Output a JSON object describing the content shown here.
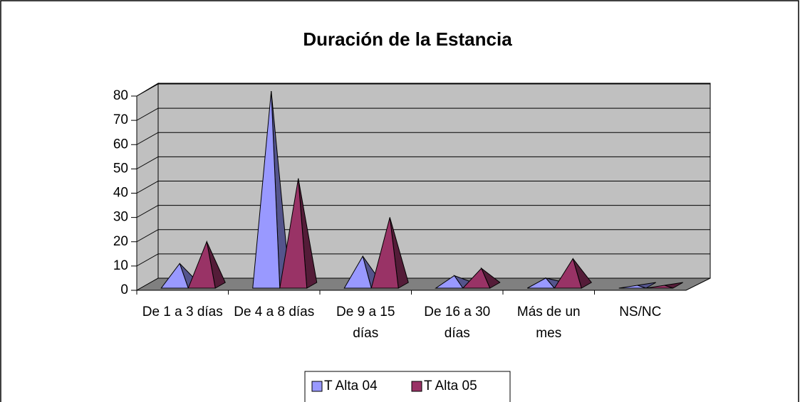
{
  "chart_data": {
    "type": "pyramid3d",
    "title": "Duración de la Estancia",
    "categories": [
      "De 1 a 3 días",
      "De 4 a 8 días",
      "De 9 a 15 días",
      "De 16 a 30 días",
      "Más de un mes",
      "NS/NC"
    ],
    "series": [
      {
        "name": "T Alta 04",
        "color": "#9999ff",
        "values": [
          9,
          80,
          12,
          4,
          3,
          0
        ]
      },
      {
        "name": "T Alta 05",
        "color": "#993366",
        "values": [
          18,
          44,
          28,
          7,
          11,
          0
        ]
      }
    ],
    "ylim": [
      0,
      80
    ],
    "yticks": [
      0,
      10,
      20,
      30,
      40,
      50,
      60,
      70,
      80
    ],
    "grid": true,
    "legend": "bottom"
  }
}
